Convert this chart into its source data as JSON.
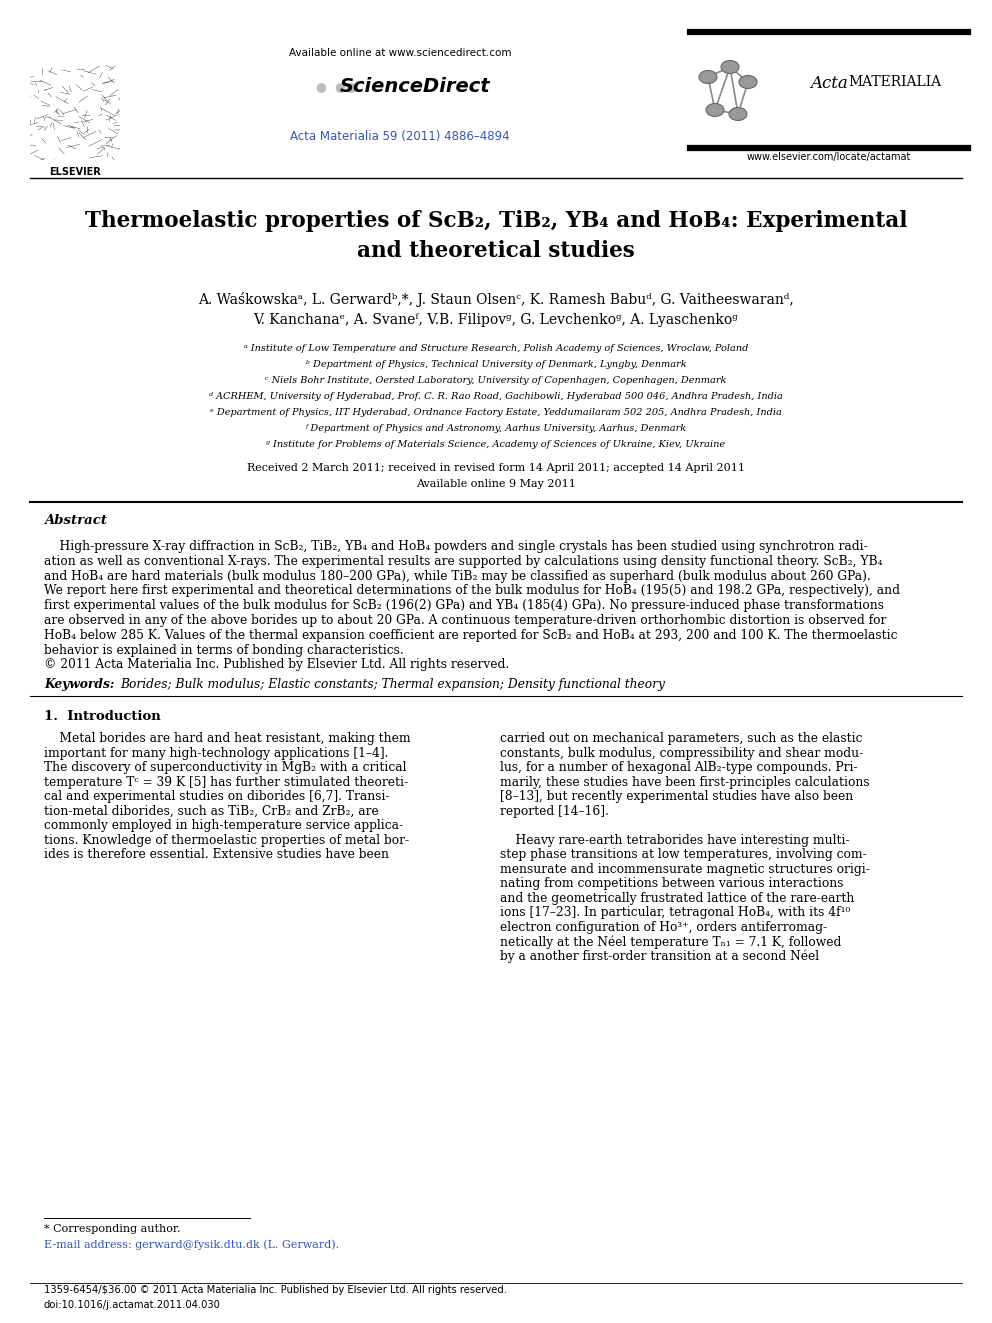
{
  "bg_color": "#ffffff",
  "header_available": "Available online at www.sciencedirect.com",
  "header_sciencedirect": "ScienceDirect",
  "header_journal": "Acta Materialia 59 (2011) 4886–4894",
  "header_journal_color": "#3355bb",
  "header_website": "www.elsevier.com/locate/actamat",
  "header_acta": "Acta MATERIALIA",
  "title_line1": "Thermoelastic properties of ScB₂, TiB₂, YB₄ and HoB₄: Experimental",
  "title_line2": "and theoretical studies",
  "authors_line1": "A. Waśkowskaᵃ, L. Gerwardᵇ,*, J. Staun Olsenᶜ, K. Ramesh Babuᵈ, G. Vaitheeswaranᵈ,",
  "authors_line2": "V. Kanchanaᵉ, A. Svaneᶠ, V.B. Filipovᵍ, G. Levchenkoᵍ, A. Lyaschenkoᵍ",
  "aff_a": "ᵃ Institute of Low Temperature and Structure Research, Polish Academy of Sciences, Wroclaw, Poland",
  "aff_b": "ᵇ Department of Physics, Technical University of Denmark, Lyngby, Denmark",
  "aff_c": "ᶜ Niels Bohr Institute, Oersted Laboratory, University of Copenhagen, Copenhagen, Denmark",
  "aff_d": "ᵈ ACRHEM, University of Hyderabad, Prof. C. R. Rao Road, Gachibowli, Hyderabad 500 046, Andhra Pradesh, India",
  "aff_e": "ᵉ Department of Physics, IIT Hyderabad, Ordnance Factory Estate, Yeddumailaram 502 205, Andhra Pradesh, India",
  "aff_f": "ᶠ Department of Physics and Astronomy, Aarhus University, Aarhus, Denmark",
  "aff_g": "ᵍ Institute for Problems of Materials Science, Academy of Sciences of Ukraine, Kiev, Ukraine",
  "dates_line1": "Received 2 March 2011; received in revised form 14 April 2011; accepted 14 April 2011",
  "dates_line2": "Available online 9 May 2011",
  "abstract_head": "Abstract",
  "abstract_body": [
    "    High-pressure X-ray diffraction in ScB₂, TiB₂, YB₄ and HoB₄ powders and single crystals has been studied using synchrotron radi-",
    "ation as well as conventional X-rays. The experimental results are supported by calculations using density functional theory. ScB₂, YB₄",
    "and HoB₄ are hard materials (bulk modulus 180–200 GPa), while TiB₂ may be classified as superhard (bulk modulus about 260 GPa).",
    "We report here first experimental and theoretical determinations of the bulk modulus for HoB₄ (195(5) and 198.2 GPa, respectively), and",
    "first experimental values of the bulk modulus for ScB₂ (196(2) GPa) and YB₄ (185(4) GPa). No pressure-induced phase transformations",
    "are observed in any of the above borides up to about 20 GPa. A continuous temperature-driven orthorhombic distortion is observed for",
    "HoB₄ below 285 K. Values of the thermal expansion coefficient are reported for ScB₂ and HoB₄ at 293, 200 and 100 K. The thermoelastic",
    "behavior is explained in terms of bonding characteristics.",
    "© 2011 Acta Materialia Inc. Published by Elsevier Ltd. All rights reserved."
  ],
  "kw_label": "Keywords:",
  "kw_text": "Borides; Bulk modulus; Elastic constants; Thermal expansion; Density functional theory",
  "intro_head": "1.  Introduction",
  "intro_col1": [
    "    Metal borides are hard and heat resistant, making them",
    "important for many high-technology applications [1–4].",
    "The discovery of superconductivity in MgB₂ with a critical",
    "temperature Tᶜ = 39 K [5] has further stimulated theoreti-",
    "cal and experimental studies on diborides [6,7]. Transi-",
    "tion-metal diborides, such as TiB₂, CrB₂ and ZrB₂, are",
    "commonly employed in high-temperature service applica-",
    "tions. Knowledge of thermoelastic properties of metal bor-",
    "ides is therefore essential. Extensive studies have been"
  ],
  "intro_col2": [
    "carried out on mechanical parameters, such as the elastic",
    "constants, bulk modulus, compressibility and shear modu-",
    "lus, for a number of hexagonal AlB₂-type compounds. Pri-",
    "marily, these studies have been first-principles calculations",
    "[8–13], but recently experimental studies have also been",
    "reported [14–16].",
    "",
    "    Heavy rare-earth tetraborides have interesting multi-",
    "step phase transitions at low temperatures, involving com-",
    "mensurate and incommensurate magnetic structures origi-",
    "nating from competitions between various interactions",
    "and the geometrically frustrated lattice of the rare-earth",
    "ions [17–23]. In particular, tetragonal HoB₄, with its 4f¹⁰",
    "electron configuration of Ho³⁺, orders antiferromag-",
    "netically at the Néel temperature Tₙ₁ = 7.1 K, followed",
    "by a another first-order transition at a second Néel"
  ],
  "footnote_star": "* Corresponding author.",
  "footnote_email": "E-mail address: gerward@fysik.dtu.dk (L. Gerward).",
  "bottom_copy": "1359-6454/$36.00 © 2011 Acta Materialia Inc. Published by Elsevier Ltd. All rights reserved.",
  "bottom_doi": "doi:10.1016/j.actamat.2011.04.030"
}
